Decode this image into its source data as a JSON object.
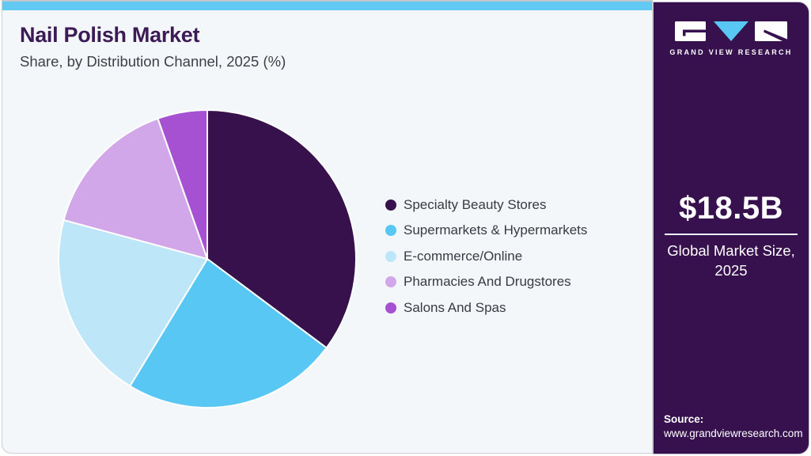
{
  "header": {
    "title": "Nail Polish Market",
    "subtitle": "Share, by Distribution Channel, 2025 (%)"
  },
  "chart_data": {
    "type": "pie",
    "title": "Nail Polish Market Share, by Distribution Channel, 2025 (%)",
    "unit": "%",
    "start_angle_deg": 0,
    "direction": "clockwise",
    "legend_position": "right",
    "categories": [
      "Specialty Beauty Stores",
      "Supermarkets & Hypermarkets",
      "E-commerce/Online",
      "Pharmacies And Drugstores",
      "Salons And Spas"
    ],
    "values": [
      35.2,
      23.5,
      20.5,
      15.4,
      5.4
    ],
    "colors": [
      "#36114B",
      "#58C7F4",
      "#BDE7F9",
      "#D1A7E9",
      "#A651D2"
    ]
  },
  "sidebar": {
    "logo_text": "GRAND VIEW RESEARCH",
    "market_size_value": "$18.5B",
    "market_size_label_line1": "Global Market Size,",
    "market_size_label_line2": "2025",
    "source_label": "Source:",
    "source_url": "www.grandviewresearch.com"
  },
  "theme": {
    "top_strip_color": "#62C9F2",
    "main_background": "#F3F7FA",
    "sidebar_background": "#36114E",
    "title_color": "#3B1A55",
    "text_color": "#3F4045",
    "accent_blue": "#58C7F4"
  }
}
